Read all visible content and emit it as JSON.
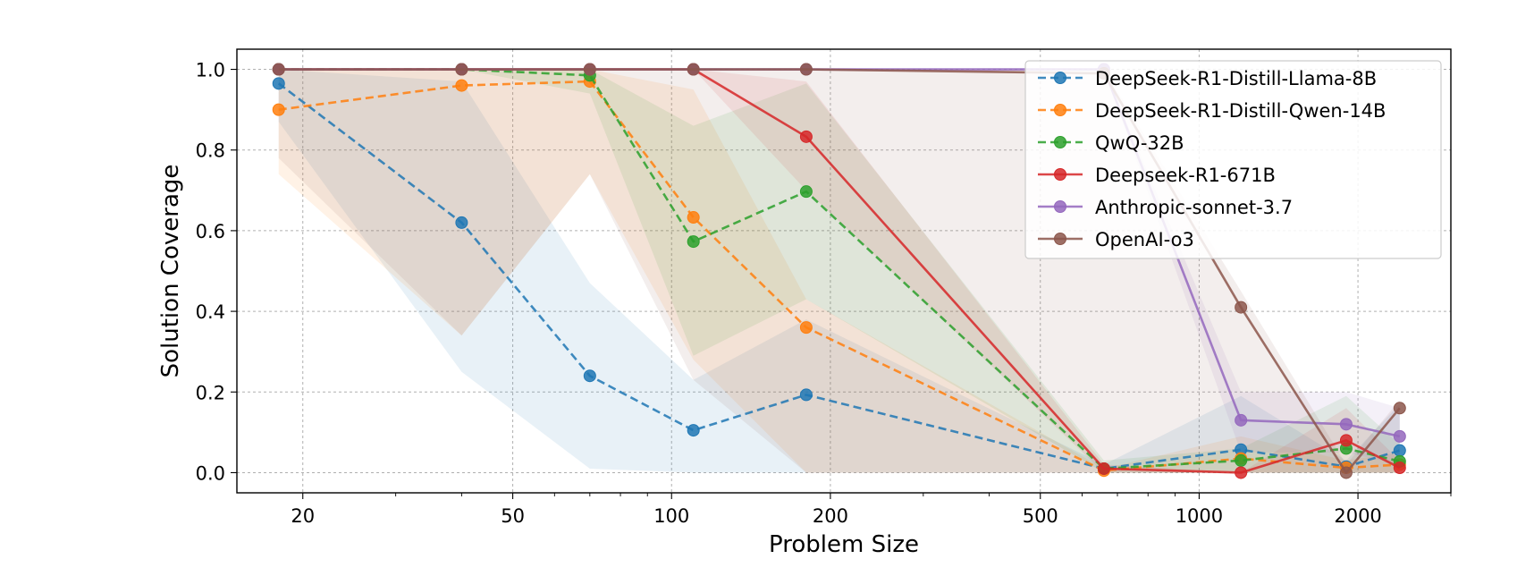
{
  "chart_data": {
    "type": "line",
    "title": "",
    "xlabel": "Problem Size",
    "ylabel": "Solution Coverage",
    "xscale": "log",
    "xlim": [
      15,
      3000
    ],
    "ylim": [
      -0.05,
      1.05
    ],
    "xticks": [
      20,
      50,
      100,
      200,
      500,
      1000,
      2000
    ],
    "xtick_labels": [
      "20",
      "50",
      "100",
      "200",
      "500",
      "1000",
      "2000"
    ],
    "yticks": [
      0.0,
      0.2,
      0.4,
      0.6,
      0.8,
      1.0
    ],
    "ytick_labels": [
      "0.0",
      "0.2",
      "0.4",
      "0.6",
      "0.8",
      "1.0"
    ],
    "grid": true,
    "legend_position": "top-right",
    "x": [
      18,
      40,
      70,
      110,
      180,
      660,
      1200,
      1900,
      2400
    ],
    "series": [
      {
        "name": "DeepSeek-R1-Distill-Llama-8B",
        "color": "#1f77b4",
        "linestyle": "dashed",
        "values": [
          0.965,
          0.62,
          0.24,
          0.105,
          0.193,
          0.01,
          0.057,
          0.015,
          0.055
        ],
        "band_lower": [
          0.87,
          0.25,
          0.01,
          0.0,
          0.0,
          0.0,
          0.0,
          0.0,
          0.0
        ],
        "band_upper": [
          1.0,
          0.97,
          0.47,
          0.23,
          0.38,
          0.02,
          0.19,
          0.03,
          0.17
        ]
      },
      {
        "name": "DeepSeek-R1-Distill-Qwen-14B",
        "color": "#ff7f0e",
        "linestyle": "dashed",
        "values": [
          0.9,
          0.96,
          0.97,
          0.633,
          0.36,
          0.005,
          0.035,
          0.012,
          0.02
        ],
        "band_lower": [
          0.74,
          0.34,
          0.74,
          0.28,
          0.0,
          0.0,
          0.0,
          0.0,
          0.0
        ],
        "band_upper": [
          1.0,
          1.0,
          1.0,
          0.95,
          0.43,
          0.01,
          0.09,
          0.03,
          0.05
        ]
      },
      {
        "name": "QwQ-32B",
        "color": "#2ca02c",
        "linestyle": "dashed",
        "values": [
          1.0,
          1.0,
          0.985,
          0.573,
          0.697,
          0.01,
          0.03,
          0.06,
          0.028
        ],
        "band_lower": [
          1.0,
          1.0,
          0.94,
          0.29,
          0.43,
          0.0,
          0.0,
          0.0,
          0.0
        ],
        "band_upper": [
          1.0,
          1.0,
          1.0,
          0.86,
          0.965,
          0.03,
          0.06,
          0.19,
          0.07
        ]
      },
      {
        "name": "Deepseek-R1-671B",
        "color": "#d62728",
        "linestyle": "solid",
        "values": [
          1.0,
          1.0,
          1.0,
          1.0,
          0.833,
          0.01,
          0.0,
          0.08,
          0.012
        ],
        "band_lower": [
          1.0,
          1.0,
          1.0,
          1.0,
          0.7,
          0.0,
          0.0,
          0.0,
          0.0
        ],
        "band_upper": [
          1.0,
          1.0,
          1.0,
          1.0,
          0.97,
          0.02,
          0.0,
          0.16,
          0.03
        ]
      },
      {
        "name": "Anthropic-sonnet-3.7",
        "color": "#9467bd",
        "linestyle": "solid",
        "values": [
          1.0,
          1.0,
          1.0,
          1.0,
          1.0,
          1.0,
          0.13,
          0.12,
          0.09
        ],
        "band_lower": [
          1.0,
          1.0,
          1.0,
          1.0,
          1.0,
          1.0,
          0.05,
          0.05,
          0.02
        ],
        "band_upper": [
          1.0,
          1.0,
          1.0,
          1.0,
          1.0,
          1.0,
          0.2,
          0.2,
          0.16
        ]
      },
      {
        "name": "OpenAI-o3",
        "color": "#8c564b",
        "linestyle": "solid",
        "values": [
          1.0,
          1.0,
          1.0,
          1.0,
          1.0,
          0.99,
          0.41,
          0.0,
          0.16
        ],
        "band_lower": [
          0.78,
          0.34,
          0.74,
          0.23,
          0.0,
          0.0,
          0.0,
          0.0,
          0.0
        ],
        "band_upper": [
          1.0,
          1.0,
          1.0,
          1.0,
          1.0,
          1.0,
          0.45,
          0.02,
          0.18
        ]
      }
    ]
  }
}
